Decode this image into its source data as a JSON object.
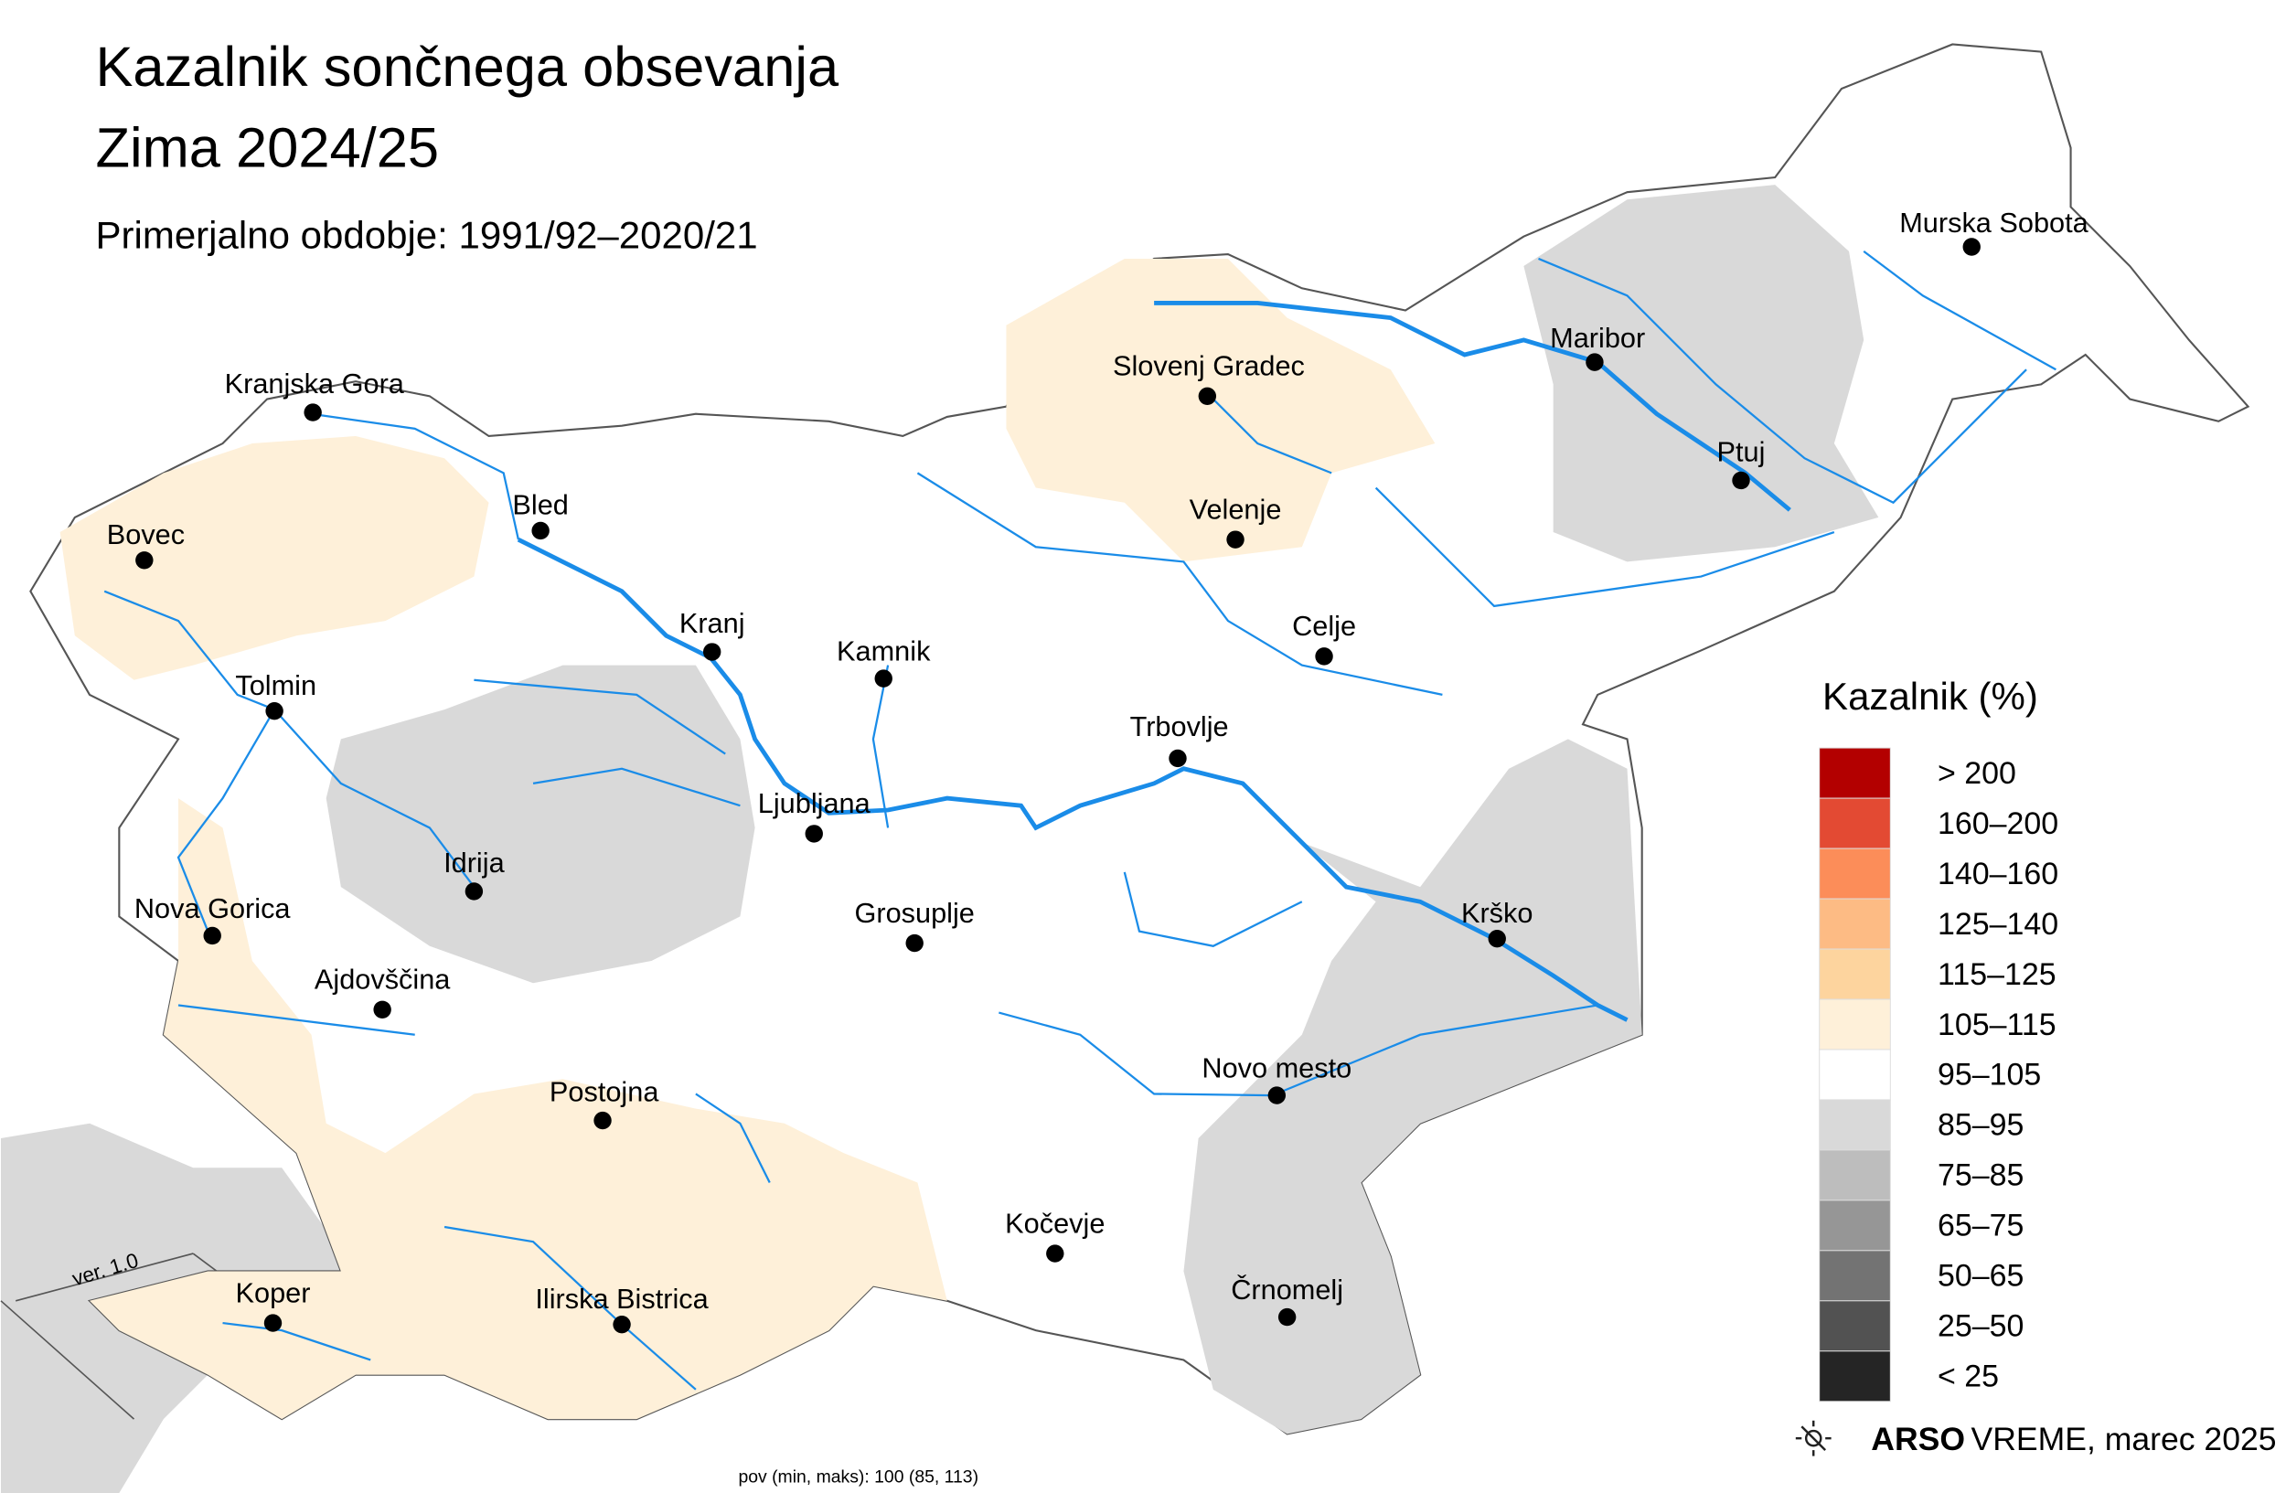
{
  "header": {
    "title": "Kazalnik sončnega obsevanja",
    "season": "Zima 2024/25",
    "subtitle": "Primerjalno obdobje: 1991/92–2020/21"
  },
  "cities": [
    "Murska Sobota",
    "Maribor",
    "Slovenj Gradec",
    "Ptuj",
    "Kranjska Gora",
    "Bled",
    "Velenje",
    "Bovec",
    "Kranj",
    "Celje",
    "Kamnik",
    "Tolmin",
    "Trbovlje",
    "Ljubljana",
    "Idrija",
    "Nova Gorica",
    "Grosuplje",
    "Krško",
    "Ajdovščina",
    "Novo mesto",
    "Postojna",
    "Kočevje",
    "Črnomelj",
    "Koper",
    "Ilirska Bistrica"
  ],
  "legend": {
    "title": "Kazalnik (%)",
    "entries": [
      {
        "label": "> 200",
        "color": "#b30000"
      },
      {
        "label": "160–200",
        "color": "#e34a33"
      },
      {
        "label": "140–160",
        "color": "#fc8d59"
      },
      {
        "label": "125–140",
        "color": "#fdbb84"
      },
      {
        "label": "115–125",
        "color": "#fdd49e"
      },
      {
        "label": "105–115",
        "color": "#fef0d9"
      },
      {
        "label": "95–105",
        "color": "#ffffff"
      },
      {
        "label": "85–95",
        "color": "#d9d9d9"
      },
      {
        "label": "75–85",
        "color": "#bdbdbd"
      },
      {
        "label": "65–75",
        "color": "#969696"
      },
      {
        "label": "50–65",
        "color": "#737373"
      },
      {
        "label": "25–50",
        "color": "#525252"
      },
      {
        "label": "< 25",
        "color": "#252525"
      }
    ]
  },
  "statistics": "pov (min, maks): 100 (85, 113)",
  "version": "ver. 1.0",
  "footer": {
    "brand": "ARSO",
    "section": "VREME",
    "date": ", marec 2025"
  }
}
